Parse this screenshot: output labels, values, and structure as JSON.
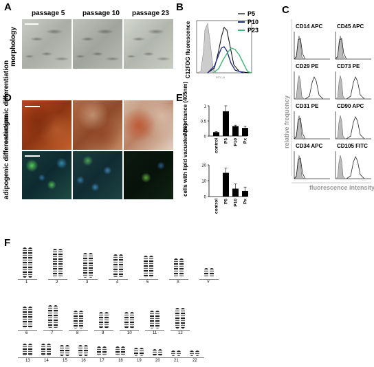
{
  "panels": {
    "A": "A",
    "B": "B",
    "C": "C",
    "D": "D",
    "E": "E",
    "F": "F"
  },
  "panel_a": {
    "columns": [
      "passage 5",
      "passage 10",
      "passage 23"
    ],
    "row_label": "morphology"
  },
  "panel_b": {
    "ylabel": "C12FDG fluorescence",
    "xtick": "FITC-A",
    "legend": [
      {
        "label": "P5",
        "color": "#000000"
      },
      {
        "label": "P10",
        "color": "#1f2d8a"
      },
      {
        "label": "P23",
        "color": "#3cb878"
      }
    ]
  },
  "panel_c": {
    "ylabel": "relative frequency",
    "xlabel": "fluorescence intensity",
    "markers": [
      "CD14 APC",
      "CD45 APC",
      "CD29 PE",
      "CD73 PE",
      "CD31 PE",
      "CD90 APC",
      "CD34 APC",
      "CD105  FITC"
    ]
  },
  "panel_d": {
    "rows": [
      "osteogenic differentiation",
      "adipogenic differentiation"
    ]
  },
  "panel_f": {
    "row1": [
      "1",
      "2",
      "3",
      "4",
      "5",
      "X",
      "Y"
    ],
    "row2": [
      "6",
      "7",
      "8",
      "9",
      "10",
      "11",
      "12"
    ],
    "row3": [
      "13",
      "14",
      "15",
      "16",
      "17",
      "18",
      "19",
      "20",
      "21",
      "22"
    ]
  },
  "chart_data": [
    {
      "type": "bar",
      "title": "",
      "ylabel": "Absorbance (405nm)",
      "categories": [
        "control",
        "P5",
        "P10",
        "Px"
      ],
      "values": [
        0.13,
        0.82,
        0.33,
        0.27
      ],
      "errors": [
        0.02,
        0.18,
        0.03,
        0.06
      ],
      "ylim": [
        0,
        1
      ],
      "yticks": [
        "0",
        "0.5",
        "1"
      ]
    },
    {
      "type": "bar",
      "title": "",
      "ylabel": "cells with lipid vacuoles (%)",
      "categories": [
        "control",
        "P5",
        "P10",
        "Px"
      ],
      "values": [
        0,
        15,
        5,
        3.5
      ],
      "errors": [
        0,
        3,
        3,
        2.5
      ],
      "ylim": [
        0,
        20
      ],
      "yticks": [
        "0",
        "10",
        "20"
      ]
    }
  ]
}
